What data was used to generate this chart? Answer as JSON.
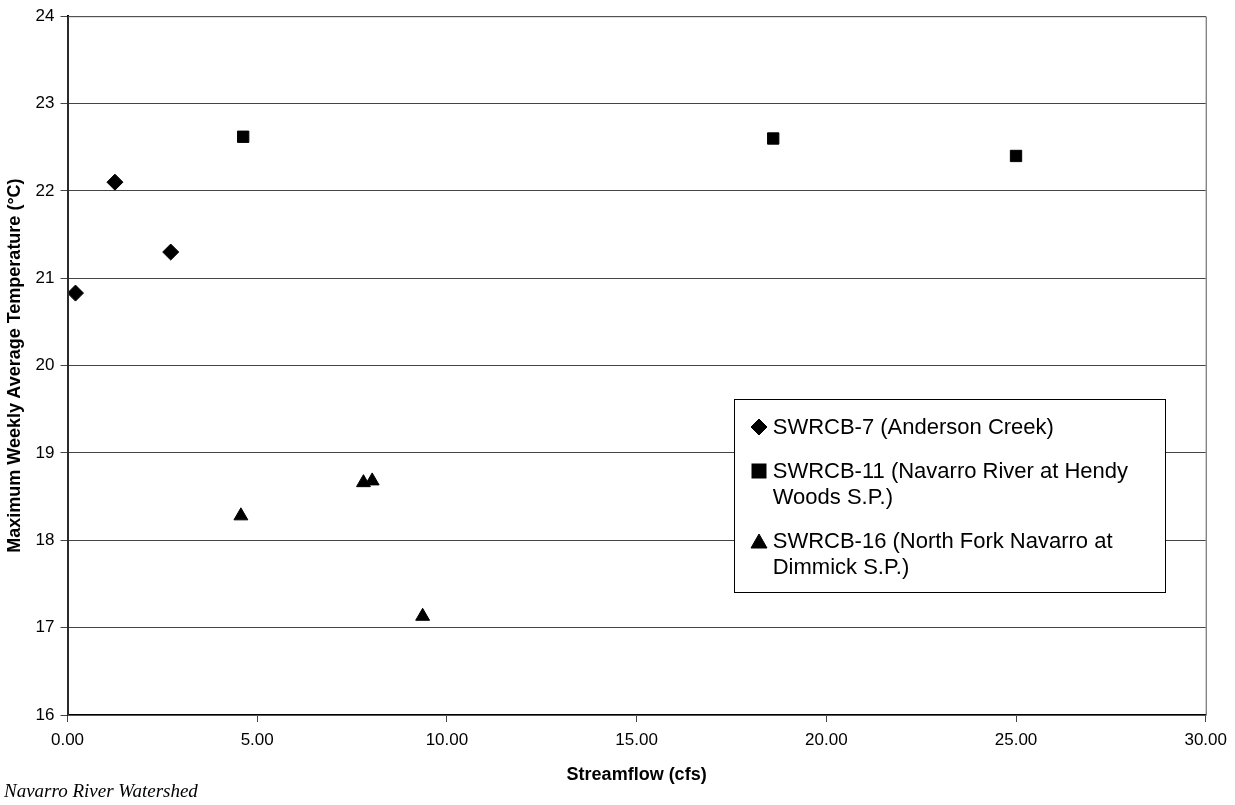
{
  "chart_data": {
    "type": "scatter",
    "xlabel": "Streamflow (cfs)",
    "ylabel": "Maximum Weekly Average Temperature (°C)",
    "xlim": [
      0,
      30
    ],
    "xticks": [
      {
        "value": 0,
        "label": "0.00"
      },
      {
        "value": 5,
        "label": "5.00"
      },
      {
        "value": 10,
        "label": "10.00"
      },
      {
        "value": 15,
        "label": "15.00"
      },
      {
        "value": 20,
        "label": "20.00"
      },
      {
        "value": 25,
        "label": "25.00"
      },
      {
        "value": 30,
        "label": "30.00"
      }
    ],
    "ylim": [
      16,
      24
    ],
    "yticks": [
      16,
      17,
      18,
      19,
      20,
      21,
      22,
      23,
      24
    ],
    "grid": "y",
    "legend": "bottom right",
    "series": [
      {
        "name": "SWRCB-7 (Anderson Creek)",
        "color": "#000000",
        "marker": "diamond",
        "x": [
          0.21,
          1.25,
          2.72
        ],
        "values": [
          20.83,
          22.1,
          21.3
        ]
      },
      {
        "name": "SWRCB-11 (Navarro River at Hendy Woods S.P.)",
        "color": "#000000",
        "marker": "square",
        "x": [
          4.63,
          18.6,
          25.0
        ],
        "values": [
          22.62,
          22.6,
          22.4
        ]
      },
      {
        "name": "SWRCB-16 (North Fork Navarro at Dimmick S.P.)",
        "color": "#000000",
        "marker": "triangle",
        "x": [
          4.57,
          7.8,
          8.03,
          9.36
        ],
        "values": [
          18.28,
          18.66,
          18.68,
          17.13
        ]
      }
    ],
    "annotations": [
      "Navarro River Watershed"
    ]
  }
}
